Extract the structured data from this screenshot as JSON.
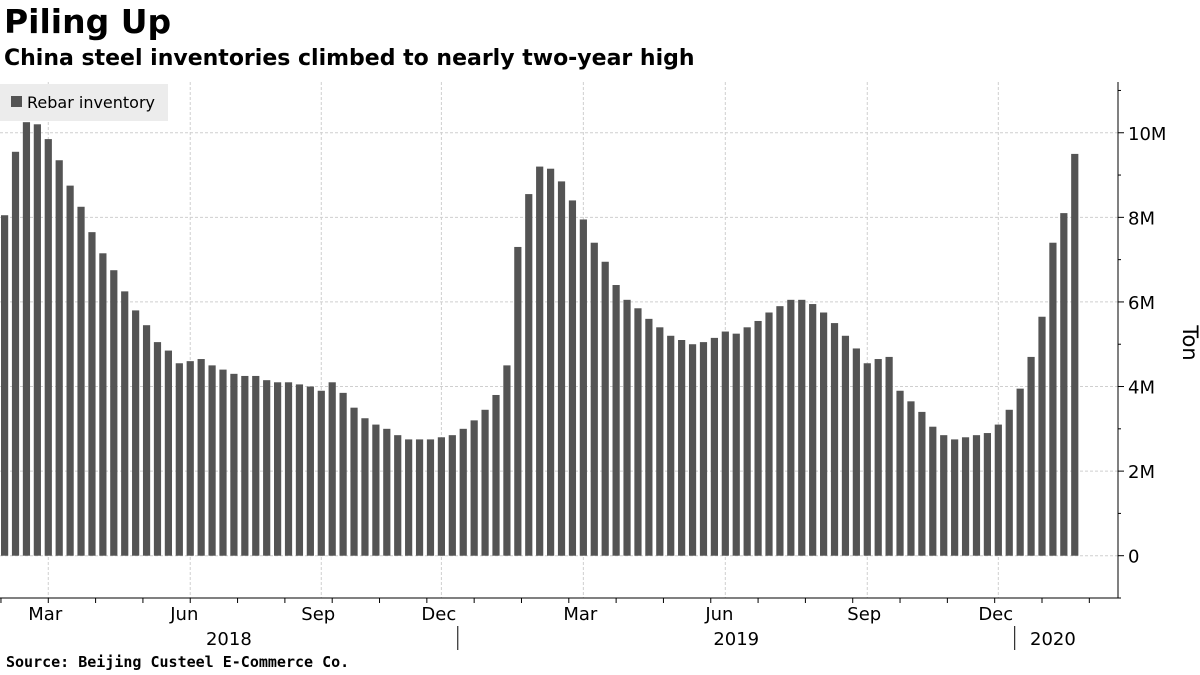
{
  "header": {
    "title": "Piling Up",
    "subtitle": "China steel inventories climbed to nearly two-year high"
  },
  "footer": {
    "source": "Source: Beijing Custeel E-Commerce Co."
  },
  "colors": {
    "bar": "#545454",
    "grid": "#cfcfcf",
    "legend_bg": "#ececec"
  },
  "chart_data": {
    "type": "bar",
    "legend_label": "Rebar inventory",
    "legend_placement": "top-left",
    "ylabel": "Ton",
    "y_axis_side": "right",
    "ylim": [
      -1,
      11.2
    ],
    "y_ticks": [
      {
        "value": 0,
        "label": "0"
      },
      {
        "value": 2,
        "label": "2M"
      },
      {
        "value": 4,
        "label": "4M"
      },
      {
        "value": 6,
        "label": "6M"
      },
      {
        "value": 8,
        "label": "8M"
      },
      {
        "value": 10,
        "label": "10M"
      }
    ],
    "y_unit_note": "values in millions of tons",
    "grid": true,
    "month_labels": [
      {
        "label": "Mar",
        "at_bar": 4
      },
      {
        "label": "Jun",
        "at_bar": 17
      },
      {
        "label": "Sep",
        "at_bar": 29
      },
      {
        "label": "Dec",
        "at_bar": 40
      },
      {
        "label": "Mar",
        "at_bar": 53
      },
      {
        "label": "Jun",
        "at_bar": 66
      },
      {
        "label": "Sep",
        "at_bar": 79
      },
      {
        "label": "Dec",
        "at_bar": 91
      }
    ],
    "year_labels": [
      {
        "label": "2018",
        "from_bar": -0.5,
        "to_bar": 41.5
      },
      {
        "label": "2019",
        "from_bar": 41.5,
        "to_bar": 92.5
      },
      {
        "label": "2020",
        "from_bar": 92.5,
        "to_bar": 99.5
      }
    ],
    "values": [
      8.05,
      9.55,
      10.25,
      10.2,
      9.85,
      9.35,
      8.75,
      8.25,
      7.65,
      7.15,
      6.75,
      6.25,
      5.8,
      5.45,
      5.05,
      4.85,
      4.55,
      4.6,
      4.65,
      4.5,
      4.4,
      4.3,
      4.25,
      4.25,
      4.15,
      4.1,
      4.1,
      4.05,
      4.0,
      3.9,
      4.1,
      3.85,
      3.5,
      3.25,
      3.1,
      3.0,
      2.85,
      2.75,
      2.75,
      2.75,
      2.8,
      2.85,
      3.0,
      3.2,
      3.45,
      3.8,
      4.5,
      7.3,
      8.55,
      9.2,
      9.15,
      8.85,
      8.4,
      7.95,
      7.4,
      6.95,
      6.4,
      6.05,
      5.85,
      5.6,
      5.4,
      5.2,
      5.1,
      5.0,
      5.05,
      5.15,
      5.3,
      5.25,
      5.4,
      5.55,
      5.75,
      5.9,
      6.05,
      6.05,
      5.95,
      5.75,
      5.5,
      5.2,
      4.9,
      4.55,
      4.65,
      4.7,
      3.9,
      3.65,
      3.4,
      3.05,
      2.85,
      2.75,
      2.8,
      2.85,
      2.9,
      3.1,
      3.45,
      3.95,
      4.7,
      5.65,
      7.4,
      8.1,
      9.5
    ]
  }
}
